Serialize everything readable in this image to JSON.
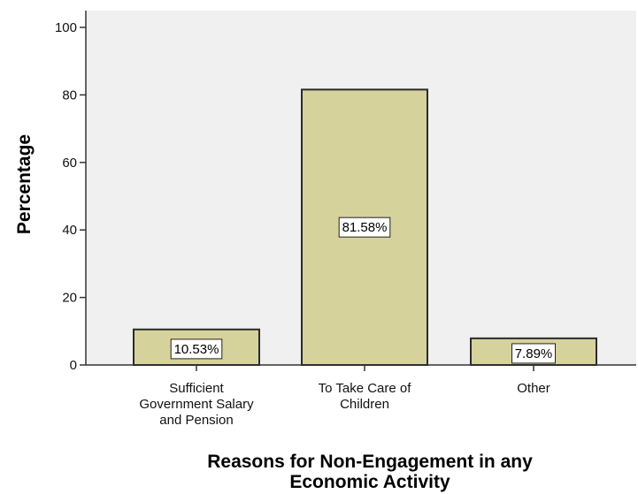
{
  "chart_data": {
    "type": "bar",
    "categories": [
      [
        "Sufficient",
        "Government Salary",
        "and Pension"
      ],
      [
        "To Take Care of",
        "Children"
      ],
      [
        "Other"
      ]
    ],
    "values": [
      10.53,
      81.58,
      7.89
    ],
    "data_labels": [
      "10.53%",
      "81.58%",
      "7.89%"
    ],
    "title": "",
    "xlabel": [
      "Reasons for Non-Engagement in any",
      "Economic Activity"
    ],
    "ylabel": "Percentage",
    "ylim": [
      0,
      100
    ],
    "yticks": [
      "0",
      "20",
      "40",
      "60",
      "80",
      "100"
    ],
    "grid": false,
    "legend": "none",
    "colors": {
      "bar_fill": "#d6d29b",
      "bar_stroke": "#2b2b2b",
      "plot_bg": "#f0f0f0",
      "axis": "#333333"
    }
  }
}
